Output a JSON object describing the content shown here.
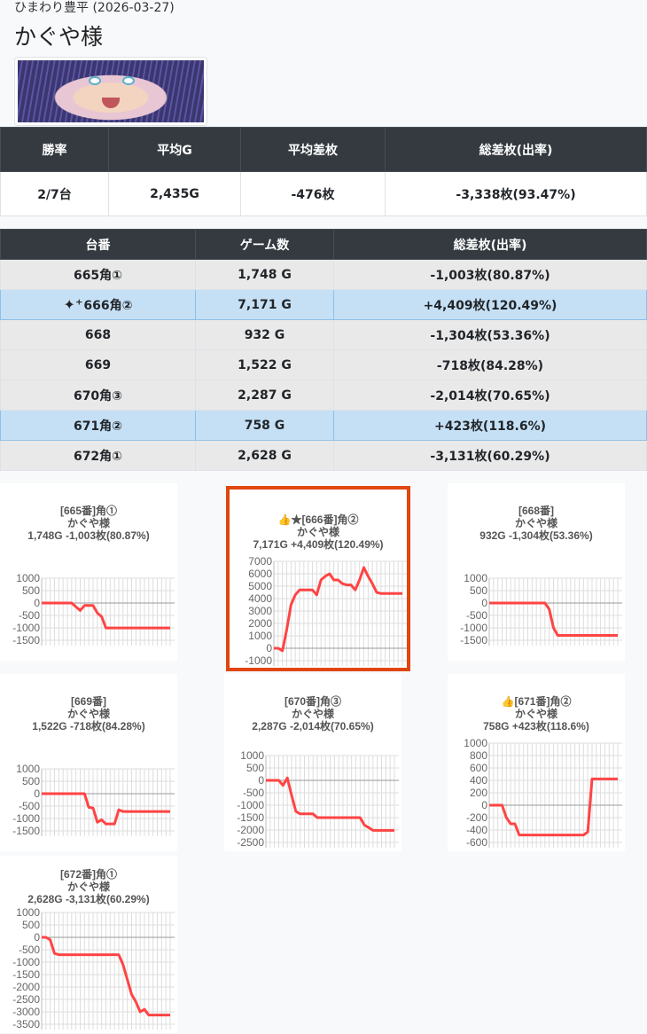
{
  "header": {
    "subtitle": "ひまわり豊平 (2026-03-27)",
    "title": "かぐや様"
  },
  "summary": {
    "headers": [
      "勝率",
      "平均G",
      "平均差枚",
      "総差枚(出率)"
    ],
    "values": [
      "2/7台",
      "2,435G",
      "-476枚",
      "-3,338枚(93.47%)"
    ]
  },
  "machines": {
    "headers": [
      "台番",
      "ゲーム数",
      "総差枚(出率)"
    ],
    "rows": [
      {
        "number": "665角①",
        "games": "1,748 G",
        "diff": "-1,003枚(80.87%)",
        "highlight": false,
        "icon": ""
      },
      {
        "number": "666角②",
        "games": "7,171 G",
        "diff": "+4,409枚(120.49%)",
        "highlight": true,
        "icon": "sparkles-icon"
      },
      {
        "number": "668",
        "games": "932 G",
        "diff": "-1,304枚(53.36%)",
        "highlight": false,
        "icon": ""
      },
      {
        "number": "669",
        "games": "1,522 G",
        "diff": "-718枚(84.28%)",
        "highlight": false,
        "icon": ""
      },
      {
        "number": "670角③",
        "games": "2,287 G",
        "diff": "-2,014枚(70.65%)",
        "highlight": false,
        "icon": ""
      },
      {
        "number": "671角②",
        "games": "758 G",
        "diff": "+423枚(118.6%)",
        "highlight": true,
        "icon": ""
      },
      {
        "number": "672角①",
        "games": "2,628 G",
        "diff": "-3,131枚(60.29%)",
        "highlight": false,
        "icon": ""
      }
    ]
  },
  "line_color": "#ff4444",
  "highlight_border_color": "#e0460f",
  "main": {
    "charts": [
      {
        "type": "line",
        "line1": "[665番]角①",
        "line2": "かぐや様",
        "line3": "1,748G -1,003枚(80.87%)",
        "ylim": [
          -1500,
          1000
        ],
        "ytick_step": 500,
        "values": [
          0,
          0,
          0,
          0,
          0,
          0,
          0,
          0,
          -150,
          -300,
          -100,
          -100,
          -100,
          -400,
          -550,
          -1003,
          -1003,
          -1003,
          -1003,
          -1003,
          -1003,
          -1003,
          -1003,
          -1003,
          -1003,
          -1003,
          -1003,
          -1003,
          -1003,
          -1003,
          -1003
        ]
      },
      {
        "type": "line",
        "line1": "👍★[666番]角②",
        "line2": "かぐや様",
        "line3": "7,171G +4,409枚(120.49%)",
        "ylim": [
          -1000,
          7000
        ],
        "ytick_step": 1000,
        "highlight": true,
        "values": [
          0,
          0,
          -200,
          1500,
          3500,
          4300,
          4700,
          4700,
          4700,
          4700,
          4300,
          5500,
          5800,
          6000,
          5500,
          5500,
          5200,
          5100,
          5100,
          4700,
          5500,
          6500,
          5800,
          5200,
          4500,
          4409,
          4409,
          4409,
          4409,
          4409,
          4409
        ]
      },
      {
        "type": "line",
        "line1": "[668番]",
        "line2": "かぐや様",
        "line3": "932G -1,304枚(53.36%)",
        "ylim": [
          -1500,
          1000
        ],
        "ytick_step": 500,
        "values": [
          0,
          0,
          0,
          0,
          0,
          0,
          0,
          0,
          0,
          0,
          0,
          0,
          0,
          0,
          -250,
          -1000,
          -1304,
          -1304,
          -1304,
          -1304,
          -1304,
          -1304,
          -1304,
          -1304,
          -1304,
          -1304,
          -1304,
          -1304,
          -1304,
          -1304,
          -1304
        ]
      },
      {
        "type": "line",
        "line1": "[669番]",
        "line2": "かぐや様",
        "line3": "1,522G -718枚(84.28%)",
        "ylim": [
          -1500,
          1000
        ],
        "ytick_step": 500,
        "values": [
          0,
          0,
          0,
          0,
          0,
          0,
          0,
          0,
          0,
          0,
          0,
          -550,
          -580,
          -1150,
          -1050,
          -1220,
          -1220,
          -1220,
          -650,
          -718,
          -718,
          -718,
          -718,
          -718,
          -718,
          -718,
          -718,
          -718,
          -718,
          -718,
          -718
        ]
      },
      {
        "type": "line",
        "line1": "[670番]角③",
        "line2": "かぐや様",
        "line3": "2,287G -2,014枚(70.65%)",
        "ylim": [
          -2500,
          1000
        ],
        "ytick_step": 500,
        "values": [
          0,
          0,
          0,
          0,
          -200,
          100,
          -600,
          -1250,
          -1350,
          -1350,
          -1350,
          -1350,
          -1500,
          -1500,
          -1500,
          -1500,
          -1500,
          -1500,
          -1500,
          -1500,
          -1500,
          -1500,
          -1500,
          -1800,
          -1900,
          -2014,
          -2014,
          -2014,
          -2014,
          -2014,
          -2014
        ]
      },
      {
        "type": "line",
        "line1": "👍[671番]角②",
        "line2": "かぐや様",
        "line3": "758G +423枚(118.6%)",
        "ylim": [
          -600,
          1000
        ],
        "ytick_step": 200,
        "values": [
          0,
          0,
          0,
          0,
          -200,
          -300,
          -300,
          -480,
          -480,
          -480,
          -480,
          -480,
          -480,
          -480,
          -480,
          -480,
          -480,
          -480,
          -480,
          -480,
          -480,
          -480,
          -480,
          -430,
          423,
          423,
          423,
          423,
          423,
          423,
          423
        ]
      },
      {
        "type": "line",
        "line1": "[672番]角①",
        "line2": "かぐや様",
        "line3": "2,628G -3,131枚(60.29%)",
        "ylim": [
          -3500,
          1000
        ],
        "ytick_step": 500,
        "values": [
          0,
          0,
          -100,
          -650,
          -700,
          -700,
          -700,
          -700,
          -700,
          -700,
          -700,
          -700,
          -700,
          -700,
          -700,
          -700,
          -700,
          -700,
          -700,
          -1100,
          -1700,
          -2300,
          -2600,
          -3000,
          -2900,
          -3131,
          -3131,
          -3131,
          -3131,
          -3131,
          -3131
        ]
      }
    ]
  }
}
